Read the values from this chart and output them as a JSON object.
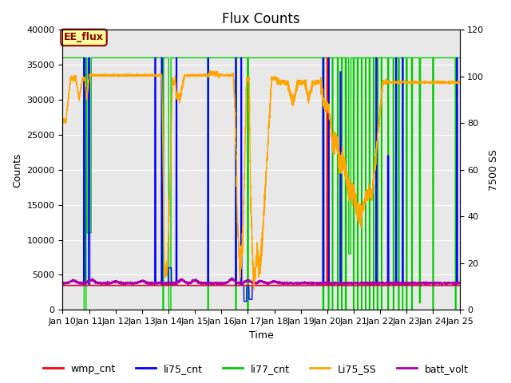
{
  "title": "Flux Counts",
  "xlabel": "Time",
  "ylabel_left": "Counts",
  "ylabel_right": "7500 SS",
  "ylim_left": [
    0,
    40000
  ],
  "ylim_right": [
    0,
    120
  ],
  "background_color": "#ffffff",
  "plot_bg_color": "#e8e8e8",
  "annotation_text": "EE_flux",
  "annotation_color": "#8B0000",
  "annotation_bg": "#ffff99",
  "series": {
    "wmp_cnt": {
      "color": "#ff0000",
      "lw": 1.0
    },
    "li75_cnt": {
      "color": "#0000ff",
      "lw": 1.0
    },
    "li77_cnt": {
      "color": "#00cc00",
      "lw": 1.0
    },
    "Li75_SS": {
      "color": "#ffa500",
      "lw": 1.0
    },
    "batt_volt": {
      "color": "#aa00aa",
      "lw": 1.0
    }
  },
  "legend_labels": [
    "wmp_cnt",
    "li75_cnt",
    "li77_cnt",
    "Li75_SS",
    "batt_volt"
  ],
  "legend_colors": [
    "#ff0000",
    "#0000ff",
    "#00cc00",
    "#ffa500",
    "#aa00aa"
  ],
  "x_ticks": [
    10,
    11,
    12,
    13,
    14,
    15,
    16,
    17,
    18,
    19,
    20,
    21,
    22,
    23,
    24,
    25
  ],
  "x_tick_labels": [
    "Jan 10",
    "Jan 11",
    "Jan 12",
    "Jan 13",
    "Jan 14",
    "Jan 15",
    "Jan 16",
    "Jan 17",
    "Jan 18",
    "Jan 19",
    "Jan 20",
    "Jan 21",
    "Jan 22",
    "Jan 23",
    "Jan 24",
    "Jan 25"
  ],
  "yticks_left": [
    0,
    5000,
    10000,
    15000,
    20000,
    25000,
    30000,
    35000,
    40000
  ],
  "yticks_right": [
    0,
    20,
    40,
    60,
    80,
    100,
    120
  ],
  "grid_color": "#ffffff",
  "title_fontsize": 12,
  "axis_fontsize": 9,
  "tick_fontsize": 8
}
